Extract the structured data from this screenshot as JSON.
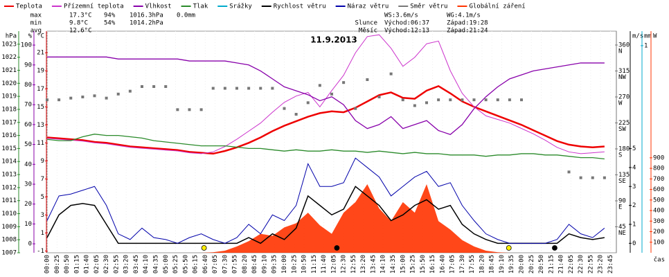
{
  "chart_data": {
    "type": "line",
    "title": "11.9.2013",
    "x_label": "čas",
    "legend": "top",
    "stats": [
      [
        "max",
        "17.3°C",
        "94%",
        "1016.3hPa",
        "0.0mm"
      ],
      [
        "min",
        "9.8°C",
        "54%",
        "1014.2hPa"
      ],
      [
        "avg",
        "12.6°C"
      ]
    ],
    "wind_stats": [
      "WS:3.6m/s",
      "WG:4.1m/s"
    ],
    "sun": [
      "Slunce",
      "Východ:06:37",
      "Západ:19:28"
    ],
    "moon": [
      "Měsíc",
      "Východ:12:13",
      "Západ:21:24"
    ],
    "xlim": [
      0,
      1440
    ],
    "xticks": [
      {
        "value": 0,
        "label": "00:00"
      },
      {
        "value": 25,
        "label": "00:25"
      },
      {
        "value": 50,
        "label": "00:50"
      },
      {
        "value": 75,
        "label": "01:15"
      },
      {
        "value": 100,
        "label": "01:40"
      },
      {
        "value": 125,
        "label": "02:05"
      },
      {
        "value": 150,
        "label": "02:30"
      },
      {
        "value": 175,
        "label": "02:55"
      },
      {
        "value": 200,
        "label": "03:20"
      },
      {
        "value": 225,
        "label": "03:45"
      },
      {
        "value": 250,
        "label": "04:10"
      },
      {
        "value": 275,
        "label": "04:35"
      },
      {
        "value": 300,
        "label": "05:00"
      },
      {
        "value": 325,
        "label": "05:25"
      },
      {
        "value": 350,
        "label": "05:50"
      },
      {
        "value": 375,
        "label": "06:15"
      },
      {
        "value": 400,
        "label": "06:40"
      },
      {
        "value": 425,
        "label": "07:05"
      },
      {
        "value": 450,
        "label": "07:30"
      },
      {
        "value": 475,
        "label": "07:55"
      },
      {
        "value": 500,
        "label": "08:20"
      },
      {
        "value": 525,
        "label": "08:45"
      },
      {
        "value": 550,
        "label": "09:10"
      },
      {
        "value": 575,
        "label": "09:35"
      },
      {
        "value": 600,
        "label": "10:00"
      },
      {
        "value": 625,
        "label": "10:25"
      },
      {
        "value": 650,
        "label": "10:50"
      },
      {
        "value": 675,
        "label": "11:15"
      },
      {
        "value": 700,
        "label": "11:40"
      },
      {
        "value": 725,
        "label": "12:05"
      },
      {
        "value": 750,
        "label": "12:30"
      },
      {
        "value": 775,
        "label": "12:55"
      },
      {
        "value": 800,
        "label": "13:20"
      },
      {
        "value": 825,
        "label": "13:45"
      },
      {
        "value": 850,
        "label": "14:10"
      },
      {
        "value": 875,
        "label": "14:35"
      },
      {
        "value": 900,
        "label": "15:00"
      },
      {
        "value": 925,
        "label": "15:25"
      },
      {
        "value": 950,
        "label": "15:50"
      },
      {
        "value": 975,
        "label": "16:15"
      },
      {
        "value": 1000,
        "label": "16:40"
      },
      {
        "value": 1025,
        "label": "17:05"
      },
      {
        "value": 1050,
        "label": "17:30"
      },
      {
        "value": 1075,
        "label": "17:55"
      },
      {
        "value": 1100,
        "label": "18:20"
      },
      {
        "value": 1125,
        "label": "18:45"
      },
      {
        "value": 1150,
        "label": "19:10"
      },
      {
        "value": 1175,
        "label": "19:35"
      },
      {
        "value": 1200,
        "label": "20:00"
      },
      {
        "value": 1225,
        "label": "20:25"
      },
      {
        "value": 1250,
        "label": "20:50"
      },
      {
        "value": 1275,
        "label": "21:15"
      },
      {
        "value": 1300,
        "label": "21:40"
      },
      {
        "value": 1325,
        "label": "22:05"
      },
      {
        "value": 1350,
        "label": "22:30"
      },
      {
        "value": 1375,
        "label": "22:55"
      },
      {
        "value": 1400,
        "label": "23:20"
      },
      {
        "value": 1425,
        "label": "23:45"
      }
    ],
    "axes": [
      {
        "id": "hpa",
        "label": "hPa",
        "color": "#2a8a2a",
        "side": "left",
        "ylim": [
          1007,
          1024
        ],
        "yticks": [
          1007,
          1008,
          1009,
          1010,
          1011,
          1012,
          1013,
          1014,
          1015,
          1016,
          1017,
          1018,
          1019,
          1020,
          1021,
          1022,
          1023
        ]
      },
      {
        "id": "pct",
        "label": "%",
        "color": "#8800aa",
        "side": "left",
        "ylim": [
          -4.5,
          107
        ],
        "yticks": [
          0,
          10,
          20,
          30,
          40,
          50,
          60,
          70,
          80,
          90,
          100
        ]
      },
      {
        "id": "temp",
        "label": "°C",
        "color": "#dd0000",
        "side": "left",
        "ylim": [
          -1.2,
          23.4
        ],
        "yticks": [
          -1,
          1,
          3,
          5,
          7,
          9,
          11,
          13,
          15,
          17,
          19,
          21
        ]
      },
      {
        "id": "dir",
        "label": "",
        "color": "#777777",
        "side": "right",
        "ylim": [
          0,
          384
        ],
        "yticks": [
          45,
          90,
          135,
          180,
          225,
          270,
          315,
          360
        ],
        "compass": [
          "NE",
          "E",
          "SE",
          "S",
          "SW",
          "W",
          "NW",
          "N"
        ]
      },
      {
        "id": "ms",
        "label": "m/s",
        "color": "#000000",
        "side": "right",
        "ylim": [
          -0.5,
          11.2
        ],
        "yticks": [
          0,
          1,
          2,
          3,
          4,
          5
        ]
      },
      {
        "id": "mm",
        "label": "mm",
        "color": "#00aacc",
        "side": "right",
        "ylim": [
          0,
          1.07
        ],
        "yticks": [
          1
        ]
      },
      {
        "id": "w",
        "label": "W",
        "color": "#ff3300",
        "side": "right",
        "ylim": [
          0,
          2100
        ],
        "yticks": [
          100,
          200,
          300,
          400,
          500,
          600,
          700,
          800,
          900
        ]
      }
    ],
    "x": [
      0,
      30,
      60,
      90,
      120,
      150,
      180,
      210,
      240,
      270,
      300,
      330,
      360,
      390,
      420,
      450,
      480,
      510,
      540,
      570,
      600,
      630,
      660,
      690,
      720,
      750,
      780,
      810,
      840,
      870,
      900,
      930,
      960,
      990,
      1020,
      1050,
      1080,
      1110,
      1140,
      1170,
      1200,
      1230,
      1260,
      1290,
      1320,
      1350,
      1380,
      1410
    ],
    "series": [
      {
        "name": "Teplota",
        "color": "#ee0000",
        "axis": "temp",
        "style": "line",
        "width": 2.5,
        "values": [
          11.6,
          11.5,
          11.4,
          11.3,
          11.1,
          11.0,
          10.8,
          10.6,
          10.5,
          10.4,
          10.3,
          10.2,
          10.0,
          9.9,
          9.8,
          10.1,
          10.5,
          11.0,
          11.6,
          12.3,
          12.9,
          13.4,
          13.9,
          14.3,
          14.5,
          14.4,
          14.9,
          15.6,
          16.3,
          16.6,
          16.0,
          15.9,
          16.8,
          17.3,
          16.5,
          15.6,
          15.0,
          14.5,
          14.0,
          13.5,
          13.0,
          12.4,
          11.8,
          11.2,
          10.8,
          10.6,
          10.5,
          10.6
        ]
      },
      {
        "name": "Přízemní teplota",
        "color": "#cc33cc",
        "axis": "temp",
        "style": "line",
        "width": 1,
        "values": [
          11.5,
          11.4,
          11.3,
          11.2,
          11.0,
          10.9,
          10.7,
          10.5,
          10.4,
          10.3,
          10.2,
          10.1,
          9.9,
          9.8,
          10.0,
          10.6,
          11.4,
          12.3,
          13.2,
          14.4,
          15.5,
          16.2,
          16.6,
          15.0,
          16.8,
          18.5,
          21.0,
          22.8,
          23.0,
          21.5,
          19.5,
          20.5,
          22.0,
          22.3,
          19.0,
          16.5,
          15.0,
          14.0,
          13.6,
          13.2,
          12.6,
          12.0,
          11.3,
          10.5,
          10.0,
          9.8,
          9.9,
          10.0
        ]
      },
      {
        "name": "Vlhkost",
        "color": "#8800aa",
        "axis": "pct",
        "style": "line",
        "width": 1.3,
        "values": [
          94,
          94,
          94,
          94,
          94,
          94,
          93,
          93,
          93,
          93,
          93,
          93,
          92,
          92,
          92,
          92,
          91,
          90,
          87,
          83,
          79,
          77,
          75,
          72,
          74,
          70,
          62,
          58,
          60,
          64,
          58,
          60,
          62,
          57,
          55,
          60,
          68,
          74,
          79,
          83,
          85,
          87,
          88,
          89,
          90,
          91,
          91,
          91
        ]
      },
      {
        "name": "Tlak",
        "color": "#2a8a2a",
        "axis": "hpa",
        "style": "line",
        "width": 1.3,
        "values": [
          1015.7,
          1015.6,
          1015.6,
          1015.9,
          1016.1,
          1016.0,
          1016.0,
          1015.9,
          1015.8,
          1015.6,
          1015.5,
          1015.4,
          1015.3,
          1015.2,
          1015.2,
          1015.2,
          1015.1,
          1015.0,
          1015.0,
          1014.9,
          1014.8,
          1014.9,
          1014.8,
          1014.8,
          1014.9,
          1014.8,
          1014.8,
          1014.7,
          1014.8,
          1014.7,
          1014.6,
          1014.7,
          1014.6,
          1014.6,
          1014.5,
          1014.5,
          1014.5,
          1014.4,
          1014.5,
          1014.5,
          1014.6,
          1014.6,
          1014.5,
          1014.5,
          1014.4,
          1014.3,
          1014.3,
          1014.2
        ]
      },
      {
        "name": "Srážky",
        "color": "#00aacc",
        "axis": "mm",
        "style": "none"
      },
      {
        "name": "Rychlost větru",
        "color": "#000000",
        "axis": "ms",
        "style": "line",
        "width": 1.5,
        "values": [
          0.3,
          1.5,
          2.0,
          2.1,
          2.0,
          1.0,
          0,
          0,
          0,
          0,
          0,
          0,
          0,
          0,
          0,
          0,
          0,
          0.3,
          0,
          0.5,
          0.2,
          0.8,
          2.5,
          2.0,
          1.5,
          1.8,
          3.0,
          2.5,
          2.0,
          1.2,
          1.5,
          2.0,
          2.3,
          1.8,
          2.0,
          1.0,
          0.5,
          0.2,
          0,
          0,
          0,
          0,
          0,
          0,
          0.5,
          0.3,
          0.2,
          0.3
        ]
      },
      {
        "name": "Náraz větru",
        "color": "#0000aa",
        "axis": "ms",
        "style": "line",
        "width": 1,
        "values": [
          1.2,
          2.5,
          2.6,
          2.8,
          3.0,
          2.0,
          0.5,
          0.2,
          0.8,
          0.3,
          0.2,
          0,
          0.3,
          0.5,
          0.2,
          0,
          0.3,
          1.0,
          0.5,
          1.5,
          1.2,
          2.0,
          4.2,
          3.0,
          3.0,
          3.2,
          4.5,
          4.0,
          3.5,
          2.5,
          3.0,
          3.5,
          3.8,
          3.0,
          3.2,
          2.0,
          1.2,
          0.5,
          0.2,
          0,
          0,
          0,
          0,
          0.2,
          1.0,
          0.5,
          0.3,
          0.8
        ]
      },
      {
        "name": "Směr větru",
        "color": "#777777",
        "axis": "dir",
        "style": "dots",
        "values": [
          265,
          265,
          268,
          270,
          272,
          268,
          275,
          280,
          288,
          288,
          288,
          248,
          248,
          248,
          285,
          285,
          285,
          285,
          285,
          285,
          250,
          240,
          260,
          290,
          275,
          295,
          250,
          300,
          270,
          310,
          265,
          255,
          260,
          265,
          265,
          265,
          265,
          265,
          265,
          265,
          265,
          null,
          null,
          null,
          140,
          130,
          130,
          130
        ]
      },
      {
        "name": "Globální záření",
        "color": "#ff3300",
        "axis": "w",
        "style": "area",
        "values": [
          0,
          0,
          0,
          0,
          0,
          0,
          0,
          0,
          0,
          0,
          0,
          0,
          0,
          0,
          5,
          20,
          60,
          110,
          180,
          160,
          240,
          280,
          380,
          260,
          180,
          380,
          480,
          650,
          420,
          300,
          480,
          380,
          650,
          300,
          220,
          120,
          60,
          20,
          5,
          0,
          0,
          0,
          0,
          0,
          0,
          0,
          0,
          0
        ]
      }
    ]
  }
}
